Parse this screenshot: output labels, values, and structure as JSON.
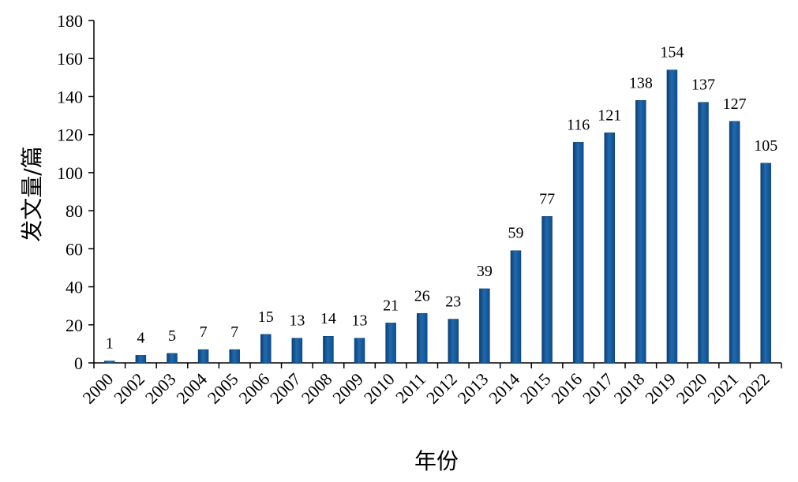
{
  "chart_data": {
    "type": "bar",
    "xlabel": "年份",
    "ylabel": "发文量/篇",
    "categories": [
      "2000",
      "2002",
      "2003",
      "2004",
      "2005",
      "2006",
      "2007",
      "2008",
      "2009",
      "2010",
      "2011",
      "2012",
      "2013",
      "2014",
      "2015",
      "2016",
      "2017",
      "2018",
      "2019",
      "2020",
      "2021",
      "2022"
    ],
    "values": [
      1,
      4,
      5,
      7,
      7,
      15,
      13,
      14,
      13,
      21,
      26,
      23,
      39,
      59,
      77,
      116,
      121,
      138,
      154,
      137,
      127,
      105
    ],
    "ylim": [
      0,
      180
    ],
    "yticks": [
      0,
      20,
      40,
      60,
      80,
      100,
      120,
      140,
      160,
      180
    ],
    "grid": false,
    "legend": "none",
    "bar_color": "#1f6aaf"
  }
}
